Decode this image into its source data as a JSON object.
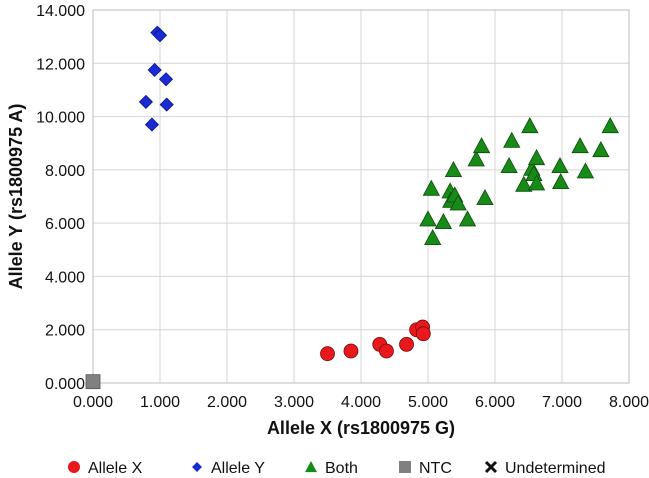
{
  "chart_data": {
    "type": "scatter",
    "xlabel": "Allele X (rs1800975 G)",
    "ylabel": "Allele Y (rs1800975 A)",
    "xlim": [
      0,
      8
    ],
    "ylim": [
      0,
      14
    ],
    "x_ticks": [
      "0.000",
      "1.000",
      "2.000",
      "3.000",
      "4.000",
      "5.000",
      "6.000",
      "7.000",
      "8.000"
    ],
    "y_ticks": [
      "0.000",
      "2.000",
      "4.000",
      "6.000",
      "8.000",
      "10.000",
      "12.000",
      "14.000"
    ],
    "grid": true,
    "legend_position": "bottom",
    "series": [
      {
        "name": "Allele X",
        "marker": "circle",
        "color": "#e8181d",
        "points": [
          [
            3.5,
            1.1
          ],
          [
            3.85,
            1.2
          ],
          [
            4.28,
            1.45
          ],
          [
            4.38,
            1.2
          ],
          [
            4.68,
            1.45
          ],
          [
            4.83,
            2.0
          ],
          [
            4.92,
            2.1
          ],
          [
            4.93,
            1.85
          ]
        ]
      },
      {
        "name": "Allele Y",
        "marker": "diamond",
        "color": "#1a2bd6",
        "points": [
          [
            0.96,
            13.15
          ],
          [
            1.0,
            13.05
          ],
          [
            0.92,
            11.75
          ],
          [
            1.09,
            11.4
          ],
          [
            0.79,
            10.55
          ],
          [
            1.1,
            10.45
          ],
          [
            0.88,
            9.7
          ]
        ]
      },
      {
        "name": "Both",
        "marker": "triangle",
        "color": "#178a17",
        "points": [
          [
            5.05,
            7.3
          ],
          [
            5.0,
            6.15
          ],
          [
            5.07,
            5.45
          ],
          [
            5.23,
            6.05
          ],
          [
            5.33,
            7.2
          ],
          [
            5.38,
            8.0
          ],
          [
            5.34,
            6.85
          ],
          [
            5.4,
            7.05
          ],
          [
            5.45,
            6.75
          ],
          [
            5.59,
            6.15
          ],
          [
            5.72,
            8.4
          ],
          [
            5.8,
            8.9
          ],
          [
            5.85,
            6.95
          ],
          [
            6.21,
            8.15
          ],
          [
            6.25,
            9.1
          ],
          [
            6.43,
            7.45
          ],
          [
            6.52,
            9.65
          ],
          [
            6.55,
            8.05
          ],
          [
            6.58,
            7.85
          ],
          [
            6.62,
            8.45
          ],
          [
            6.62,
            7.5
          ],
          [
            6.97,
            8.15
          ],
          [
            6.98,
            7.55
          ],
          [
            7.27,
            8.9
          ],
          [
            7.35,
            7.95
          ],
          [
            7.58,
            8.75
          ],
          [
            7.72,
            9.65
          ]
        ]
      },
      {
        "name": "NTC",
        "marker": "square",
        "color": "#808080",
        "points": [
          [
            0.0,
            0.05
          ]
        ]
      },
      {
        "name": "Undetermined",
        "marker": "cross",
        "color": "#111111",
        "points": []
      }
    ]
  }
}
